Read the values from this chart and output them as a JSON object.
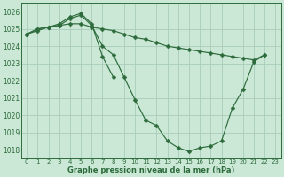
{
  "title": "Graphe pression niveau de la mer (hPa)",
  "background_color": "#cae8d5",
  "grid_color": "#a8ccbb",
  "line_color": "#2d6b3c",
  "xlim": [
    -0.5,
    23.5
  ],
  "ylim": [
    1017.5,
    1026.5
  ],
  "xticks": [
    0,
    1,
    2,
    3,
    4,
    5,
    6,
    7,
    8,
    9,
    10,
    11,
    12,
    13,
    14,
    15,
    16,
    17,
    18,
    19,
    20,
    21,
    22,
    23
  ],
  "yticks": [
    1018,
    1019,
    1020,
    1021,
    1022,
    1023,
    1024,
    1025,
    1026
  ],
  "series1_x": [
    0,
    1,
    2,
    3,
    4,
    5,
    6,
    7,
    8,
    9,
    10,
    11,
    12,
    13,
    14,
    15,
    16,
    17,
    18,
    19,
    20,
    21,
    22
  ],
  "series1_y": [
    1024.7,
    1024.9,
    1025.1,
    1025.2,
    1025.6,
    1025.8,
    1025.2,
    1024.0,
    1023.5,
    1022.2,
    1020.9,
    1019.7,
    1019.4,
    1018.5,
    1018.1,
    1017.9,
    1018.1,
    1018.2,
    1018.5,
    1020.4,
    1021.5,
    1023.1,
    1023.5
  ],
  "series2_x": [
    0,
    1,
    2,
    3,
    4,
    5,
    6,
    7,
    8,
    9,
    10,
    11,
    12,
    13,
    14,
    15,
    16,
    17,
    18,
    19,
    20,
    21,
    22
  ],
  "series2_y": [
    1024.7,
    1025.0,
    1025.1,
    1025.2,
    1025.3,
    1025.3,
    1025.1,
    1025.0,
    1024.9,
    1024.7,
    1024.5,
    1024.4,
    1024.2,
    1024.0,
    1023.9,
    1023.8,
    1023.7,
    1023.6,
    1023.5,
    1023.4,
    1023.3,
    1023.2,
    1023.5
  ],
  "series3_x": [
    0,
    1,
    2,
    3,
    4,
    5,
    6,
    7,
    8
  ],
  "series3_y": [
    1024.7,
    1025.0,
    1025.1,
    1025.3,
    1025.7,
    1025.9,
    1025.3,
    1023.4,
    1022.2
  ],
  "marker_size": 2.5,
  "line_width": 0.85,
  "tick_fontsize": 5.5,
  "xlabel_fontsize": 6.0
}
